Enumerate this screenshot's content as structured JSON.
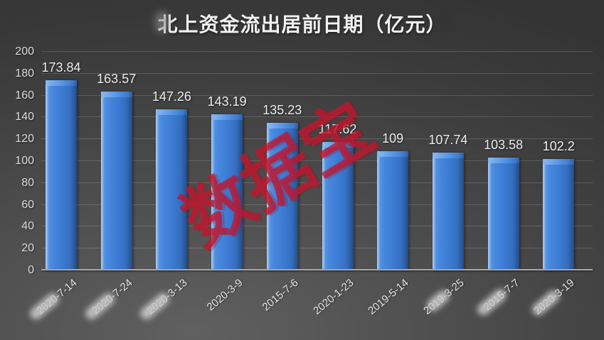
{
  "title": "北上资金流出居前日期（亿元）",
  "watermark": "数据宝",
  "chart_data": {
    "type": "bar",
    "title": "北上资金流出居前日期（亿元）",
    "categories": [
      "2020-7-14",
      "2020-7-24",
      "2020-3-13",
      "2020-3-9",
      "2015-7-6",
      "2020-1-23",
      "2019-5-14",
      "2019-3-25",
      "2015-7-7",
      "2020-3-19"
    ],
    "values": [
      173.84,
      163.57,
      147.26,
      143.19,
      135.23,
      117.62,
      109,
      107.74,
      103.58,
      102.2
    ],
    "value_labels": [
      "173.84",
      "163.57",
      "147.26",
      "143.19",
      "135.23",
      "117.62",
      "109",
      "107.74",
      "103.58",
      "102.2"
    ],
    "xlabel": "",
    "ylabel": "",
    "ylim": [
      0,
      200
    ],
    "ytick_step": 20,
    "yticks": [
      0,
      20,
      40,
      60,
      80,
      100,
      120,
      140,
      160,
      180,
      200
    ],
    "grid": true,
    "legend": false,
    "bar_color": "#3b7ad2",
    "bar_highlight": "#8ab9f1",
    "bar_shadow": "#224a86",
    "value_label_color": "#ececec",
    "axis_label_color": "#dcdcdc",
    "axis_line_color": "#a8a8a8",
    "watermark_color": "#c1162d",
    "background_dark": "#343434",
    "background_light": "#606060",
    "censored_x_labels": [
      {
        "index": 0,
        "start_char": 0,
        "end_char": 4
      },
      {
        "index": 1,
        "start_char": 0,
        "end_char": 4
      },
      {
        "index": 2,
        "start_char": 0,
        "end_char": 4
      },
      {
        "index": 7,
        "start_char": 2,
        "end_char": 5
      },
      {
        "index": 8,
        "start_char": 0,
        "end_char": 4
      },
      {
        "index": 9,
        "start_char": 1,
        "end_char": 5
      }
    ],
    "title_censored": {
      "head": true,
      "tail": true
    }
  }
}
